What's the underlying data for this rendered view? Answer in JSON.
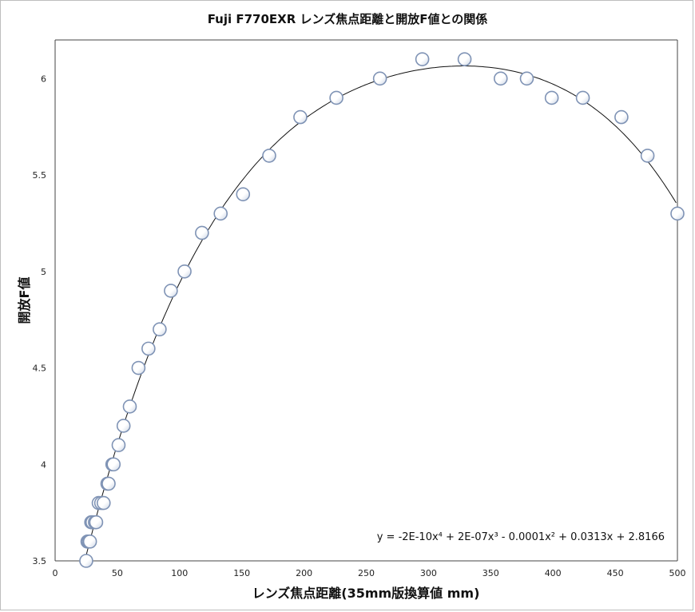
{
  "chart_data": {
    "type": "scatter",
    "title": "Fuji F770EXR レンズ焦点距離と開放F値との関係",
    "xlabel": "レンズ焦点距離(35mm版換算値 mm)",
    "ylabel": "開放F値",
    "xlim": [
      0,
      500
    ],
    "ylim": [
      3.5,
      6.2
    ],
    "x_ticks": [
      0,
      50,
      100,
      150,
      200,
      250,
      300,
      350,
      400,
      450,
      500
    ],
    "y_ticks": [
      3.5,
      4,
      4.5,
      5,
      5.5,
      6
    ],
    "grid": false,
    "trendline": {
      "type": "polynomial",
      "order": 4,
      "equation": "y = -2E-10x⁴ + 2E-07x³ - 0.0001x² + 0.0313x + 2.8166"
    },
    "points": [
      {
        "x": 25,
        "y": 3.5
      },
      {
        "x": 26,
        "y": 3.6
      },
      {
        "x": 27,
        "y": 3.6
      },
      {
        "x": 28,
        "y": 3.6
      },
      {
        "x": 29,
        "y": 3.7
      },
      {
        "x": 30,
        "y": 3.7
      },
      {
        "x": 32,
        "y": 3.7
      },
      {
        "x": 33,
        "y": 3.7
      },
      {
        "x": 35,
        "y": 3.8
      },
      {
        "x": 37,
        "y": 3.8
      },
      {
        "x": 39,
        "y": 3.8
      },
      {
        "x": 42,
        "y": 3.9
      },
      {
        "x": 43,
        "y": 3.9
      },
      {
        "x": 46,
        "y": 4.0
      },
      {
        "x": 47,
        "y": 4.0
      },
      {
        "x": 51,
        "y": 4.1
      },
      {
        "x": 55,
        "y": 4.2
      },
      {
        "x": 60,
        "y": 4.3
      },
      {
        "x": 67,
        "y": 4.5
      },
      {
        "x": 75,
        "y": 4.6
      },
      {
        "x": 84,
        "y": 4.7
      },
      {
        "x": 93,
        "y": 4.9
      },
      {
        "x": 104,
        "y": 5.0
      },
      {
        "x": 118,
        "y": 5.2
      },
      {
        "x": 133,
        "y": 5.3
      },
      {
        "x": 151,
        "y": 5.4
      },
      {
        "x": 172,
        "y": 5.6
      },
      {
        "x": 197,
        "y": 5.8
      },
      {
        "x": 226,
        "y": 5.9
      },
      {
        "x": 261,
        "y": 6.0
      },
      {
        "x": 295,
        "y": 6.1
      },
      {
        "x": 329,
        "y": 6.1
      },
      {
        "x": 358,
        "y": 6.0
      },
      {
        "x": 379,
        "y": 6.0
      },
      {
        "x": 399,
        "y": 5.9
      },
      {
        "x": 424,
        "y": 5.9
      },
      {
        "x": 455,
        "y": 5.8
      },
      {
        "x": 476,
        "y": 5.6
      },
      {
        "x": 500,
        "y": 5.3
      }
    ]
  }
}
